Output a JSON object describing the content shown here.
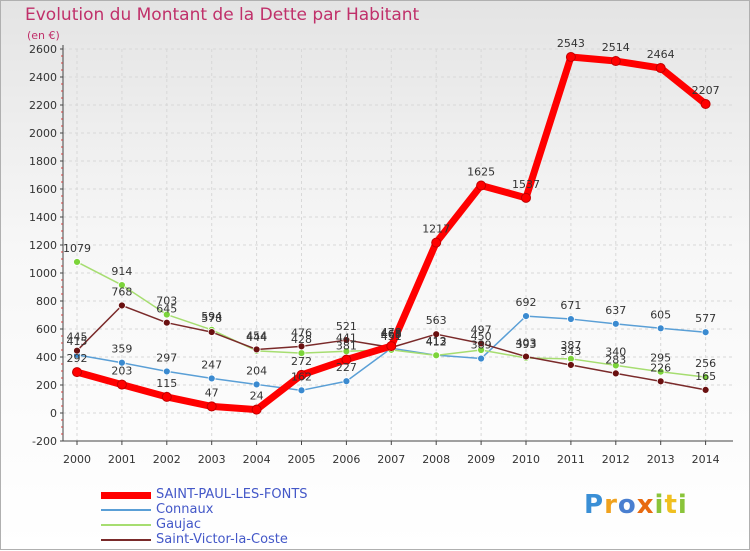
{
  "title": "Evolution du Montant de la Dette par Habitant",
  "subtitle": "(en €)",
  "chart_data": {
    "type": "line",
    "x": [
      2000,
      2001,
      2002,
      2003,
      2004,
      2005,
      2006,
      2007,
      2008,
      2009,
      2010,
      2011,
      2012,
      2013,
      2014
    ],
    "ylim": [
      -200,
      2600
    ],
    "yticks": [
      -200,
      0,
      200,
      400,
      600,
      800,
      1000,
      1200,
      1400,
      1600,
      1800,
      2000,
      2200,
      2400,
      2600
    ],
    "grid": true,
    "legend_position": "bottom-left",
    "series": [
      {
        "name": "SAINT-PAUL-LES-FONTS",
        "color": "#ff0000",
        "marker_color": "#ff0000",
        "values": [
          292,
          203,
          115,
          47,
          24,
          272,
          381,
          478,
          1217,
          1625,
          1537,
          2543,
          2514,
          2464,
          2207
        ]
      },
      {
        "name": "Connaux",
        "color": "#5a9fd6",
        "marker_color": "#3a8ad0",
        "values": [
          415,
          359,
          297,
          247,
          204,
          162,
          227,
          463,
          413,
          389,
          692,
          671,
          637,
          605,
          577
        ]
      },
      {
        "name": "Gaujac",
        "color": "#a6dd70",
        "marker_color": "#7cd43a",
        "values": [
          1079,
          914,
          703,
          594,
          444,
          428,
          441,
          451,
          412,
          450,
          393,
          387,
          340,
          295,
          256
        ]
      },
      {
        "name": "Saint-Victor-la-Coste",
        "color": "#7a2a2a",
        "marker_color": "#6a1010",
        "values": [
          445,
          768,
          645,
          578,
          454,
          476,
          521,
          468,
          563,
          497,
          403,
          343,
          283,
          226,
          165
        ]
      }
    ]
  },
  "brand": {
    "p": "P",
    "r": "r",
    "o": "o",
    "x": "x",
    "i": "i",
    "t": "t",
    "i2": "i"
  }
}
